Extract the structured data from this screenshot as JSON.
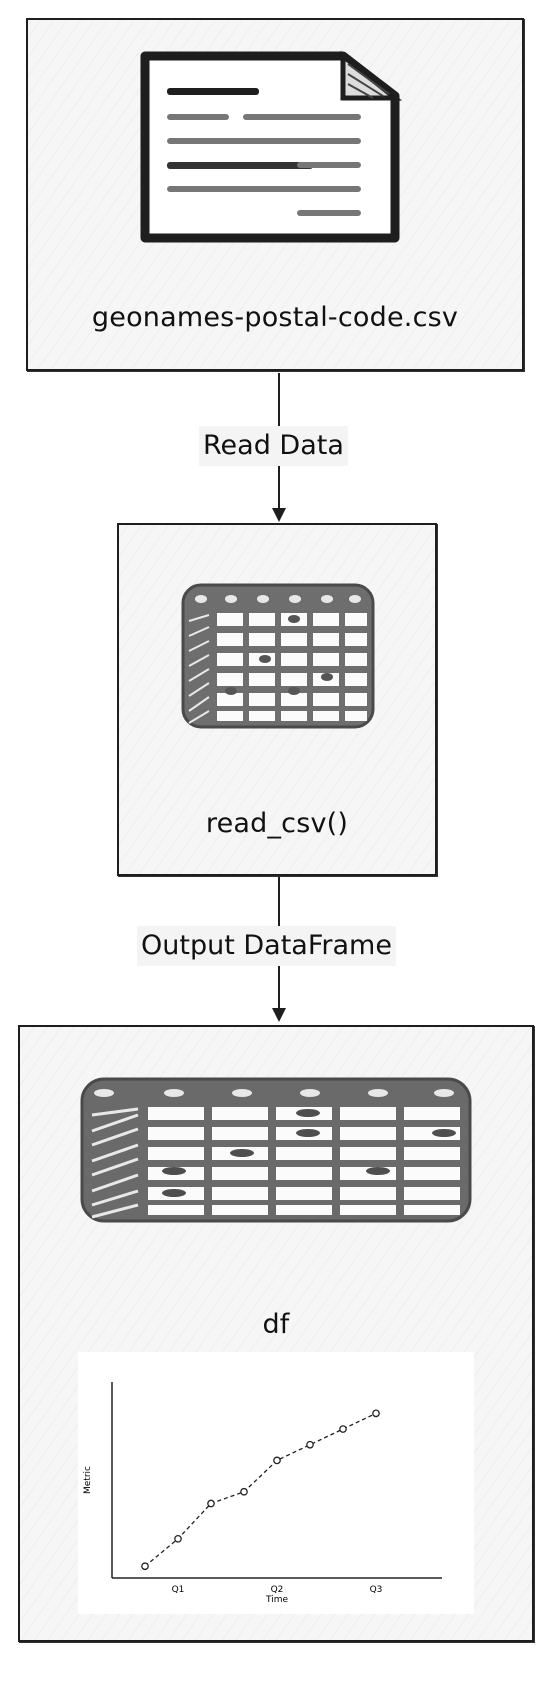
{
  "diagram": {
    "nodes": {
      "file": {
        "label": "geonames-postal-code.csv",
        "icon": "document-icon"
      },
      "read": {
        "label": "read_csv()",
        "icon": "table-icon"
      },
      "df": {
        "label": "df",
        "icon": "table-icon"
      }
    },
    "edges": [
      {
        "from": "file",
        "to": "read",
        "label": "Read Data"
      },
      {
        "from": "read",
        "to": "df",
        "label": "Output DataFrame"
      }
    ]
  },
  "chart_data": {
    "type": "line",
    "title": "",
    "xlabel": "Time",
    "ylabel": "Metric",
    "x": [
      0,
      1,
      2,
      3,
      4,
      5,
      6,
      7
    ],
    "x_ticks": [
      1,
      4,
      7
    ],
    "x_tick_labels": [
      "Q1",
      "Q2",
      "Q3"
    ],
    "values": [
      0.3,
      1.0,
      1.9,
      2.2,
      3.0,
      3.4,
      3.8,
      4.2
    ],
    "xlim": [
      -1,
      9
    ],
    "ylim": [
      0,
      5
    ],
    "grid": false,
    "line_style": "dashed",
    "marker": "circle"
  }
}
